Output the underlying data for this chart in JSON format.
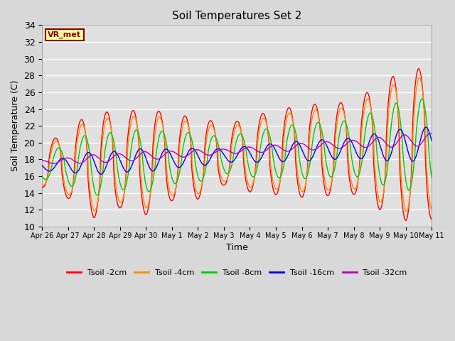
{
  "title": "Soil Temperatures Set 2",
  "xlabel": "Time",
  "ylabel": "Soil Temperature (C)",
  "ylim": [
    10,
    34
  ],
  "yticks": [
    10,
    12,
    14,
    16,
    18,
    20,
    22,
    24,
    26,
    28,
    30,
    32,
    34
  ],
  "annotation_text": "VR_met",
  "annotation_color": "#8B0000",
  "annotation_bg": "#FFFF99",
  "bg_color": "#E0E0E0",
  "grid_color": "#FFFFFF",
  "series_colors": {
    "2cm": "#FF0000",
    "4cm": "#FF8C00",
    "8cm": "#00CC00",
    "16cm": "#0000FF",
    "32cm": "#BB00BB"
  },
  "x_tick_labels": [
    "Apr 26",
    "Apr 27",
    "Apr 28",
    "Apr 29",
    "Apr 30",
    "May 1",
    "May 2",
    "May 3",
    "May 4",
    "May 5",
    "May 6",
    "May 7",
    "May 8",
    "May 9",
    "May 10",
    "May 11"
  ],
  "legend_labels": [
    "Tsoil -2cm",
    "Tsoil -4cm",
    "Tsoil -8cm",
    "Tsoil -16cm",
    "Tsoil -32cm"
  ]
}
